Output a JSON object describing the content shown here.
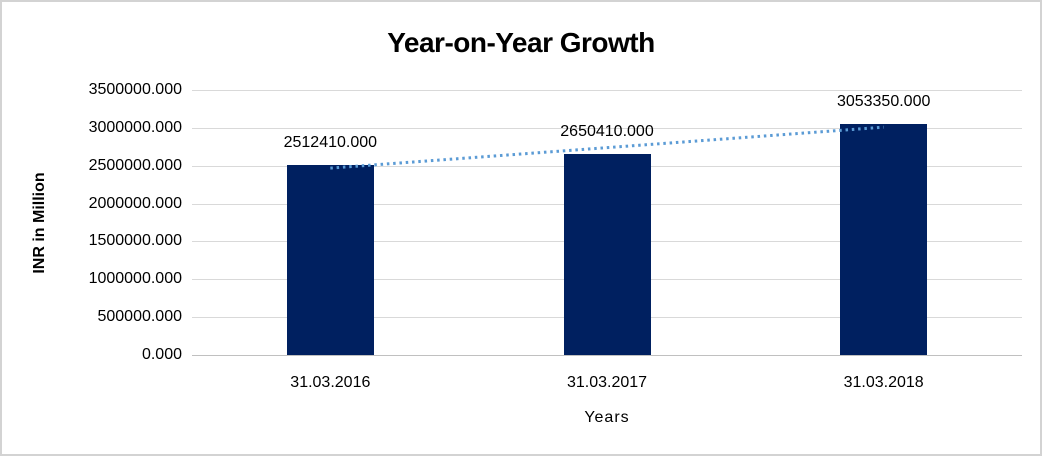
{
  "chart_data": {
    "type": "bar",
    "title": "Year-on-Year Growth",
    "xlabel": "Years",
    "ylabel": "INR in Million",
    "categories": [
      "31.03.2016",
      "31.03.2017",
      "31.03.2018"
    ],
    "values": [
      2512410,
      2650410,
      3053350
    ],
    "value_labels": [
      "2512410.000",
      "2650410.000",
      "3053350.000"
    ],
    "ylim": [
      0,
      3500000
    ],
    "ytick_step": 500000,
    "ytick_labels": [
      "0.000",
      "500000.000",
      "1000000.000",
      "1500000.000",
      "2000000.000",
      "2500000.000",
      "3000000.000",
      "3500000.000"
    ],
    "grid": true,
    "legend": "none",
    "trendline": {
      "type": "linear",
      "style": "dotted",
      "color": "#5B9BD5"
    },
    "colors": {
      "bar": "#002060",
      "gridline": "#D9D9D9",
      "axis_line": "#C0C0C0",
      "text": "#000000",
      "background": "#FFFFFF",
      "frame_border": "#D3D3D3"
    }
  }
}
